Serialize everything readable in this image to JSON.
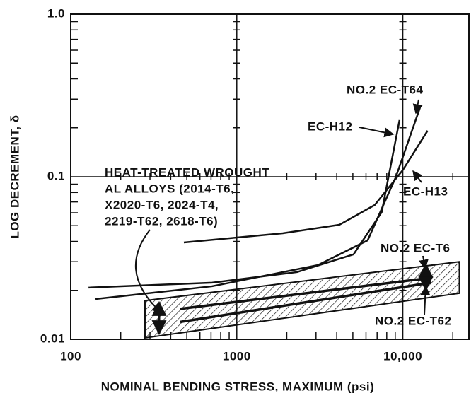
{
  "chart_data": {
    "type": "line",
    "x_label": "NOMINAL BENDING STRESS, MAXIMUM (psi)",
    "y_label": "LOG DECREMENT, δ",
    "log_x": true,
    "log_y": true,
    "grid": true,
    "color": "#111111",
    "xlim": [
      100,
      25000
    ],
    "xticks": [
      100,
      1000,
      {
        "value": 10000,
        "label": "10,000"
      }
    ],
    "ylim": [
      0.01,
      1
    ],
    "yticks": [
      0.01,
      0.1,
      {
        "value": 1,
        "label": "1.0"
      }
    ],
    "series": [
      {
        "name": "EC-H12",
        "x": [
          128,
          710,
          2300,
          5050,
          7460,
          9550
        ],
        "values": [
          0.0208,
          0.0223,
          0.0259,
          0.0333,
          0.0606,
          0.223
        ]
      },
      {
        "name": "NO.2 EC-T64",
        "x": [
          141,
          710,
          3080,
          6140,
          9090,
          12700
        ],
        "values": [
          0.0177,
          0.0212,
          0.0286,
          0.0406,
          0.1,
          0.267
        ]
      },
      {
        "name": "EC-H13",
        "x": [
          480,
          1890,
          4140,
          6770,
          10000,
          14100
        ],
        "values": [
          0.0394,
          0.0449,
          0.0506,
          0.067,
          0.11,
          0.192
        ]
      },
      {
        "name": "NO.2 EC-T6",
        "x": [
          457,
          14800
        ],
        "values": [
          0.0154,
          0.0239
        ]
      },
      {
        "name": "NO.2 EC-T62",
        "x": [
          457,
          14800
        ],
        "values": [
          0.0128,
          0.0223
        ]
      }
    ],
    "band": {
      "label": [
        "HEAT-TREATED WROUGHT",
        "AL ALLOYS (2014-T6,",
        "X2020-T6, 2024-T4,",
        "2219-T62, 2618-T6)"
      ],
      "x": [
        280,
        21900
      ],
      "upper": [
        0.0173,
        0.03
      ],
      "lower": [
        0.0102,
        0.0192
      ]
    }
  }
}
